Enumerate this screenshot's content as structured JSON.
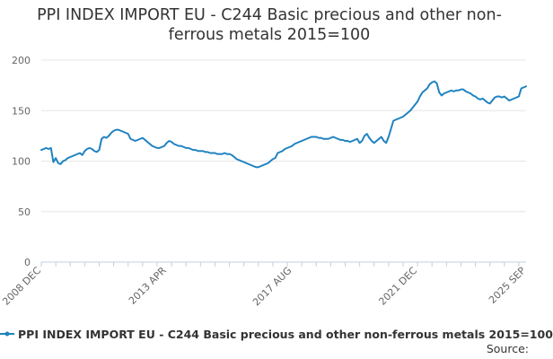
{
  "chart_data": {
    "type": "line",
    "title_line1": "PPI INDEX IMPORT EU - C244 Basic precious and other non-",
    "title_line2": "ferrous metals 2015=100",
    "xlabel": "",
    "ylabel": "",
    "ylim": [
      0,
      200
    ],
    "y_ticks": [
      0,
      50,
      100,
      150,
      200
    ],
    "x_tick_labels": [
      "2008 DEC",
      "2013 APR",
      "2017 AUG",
      "2021 DEC",
      "2025 SEP"
    ],
    "x_tick_index": [
      0,
      52,
      104,
      156,
      201
    ],
    "grid": true,
    "legend_position": "bottom",
    "series": [
      {
        "name": "PPI INDEX IMPORT EU - C244 Basic precious and other non-ferrous metals 2015=100",
        "color": "#1f82c0",
        "values": [
          111,
          112,
          113,
          112,
          113,
          99,
          103,
          98,
          97,
          100,
          101,
          103,
          104,
          105,
          106,
          107,
          108,
          106,
          110,
          112,
          113,
          112,
          110,
          109,
          111,
          122,
          124,
          123,
          125,
          128,
          130,
          131,
          131,
          130,
          129,
          128,
          127,
          122,
          121,
          120,
          121,
          122,
          123,
          121,
          119,
          117,
          115,
          114,
          113,
          113,
          114,
          115,
          118,
          120,
          119,
          117,
          116,
          115,
          115,
          114,
          113,
          113,
          112,
          111,
          111,
          110,
          110,
          110,
          109,
          109,
          108,
          108,
          108,
          107,
          107,
          107,
          108,
          107,
          107,
          106,
          104,
          102,
          101,
          100,
          99,
          98,
          97,
          96,
          95,
          94,
          94,
          95,
          96,
          97,
          98,
          100,
          102,
          103,
          108,
          109,
          110,
          112,
          113,
          114,
          115,
          117,
          118,
          119,
          120,
          121,
          122,
          123,
          124,
          124,
          124,
          123,
          123,
          122,
          122,
          122,
          123,
          124,
          123,
          122,
          121,
          121,
          120,
          120,
          119,
          120,
          121,
          122,
          118,
          120,
          125,
          127,
          123,
          120,
          118,
          120,
          122,
          124,
          120,
          118,
          124,
          132,
          140,
          141,
          142,
          143,
          144,
          146,
          148,
          150,
          153,
          156,
          159,
          164,
          168,
          170,
          172,
          176,
          178,
          179,
          177,
          168,
          165,
          167,
          168,
          169,
          170,
          169,
          170,
          170,
          171,
          171,
          169,
          168,
          167,
          165,
          164,
          162,
          161,
          162,
          160,
          158,
          157,
          160,
          163,
          164,
          164,
          163,
          164,
          162,
          160,
          161,
          162,
          163,
          164,
          172,
          173,
          174
        ]
      }
    ]
  },
  "legend": {
    "label": "PPI INDEX IMPORT EU - C244 Basic precious and other non-ferrous metals 2015=100"
  },
  "source": {
    "label": "Source:"
  }
}
